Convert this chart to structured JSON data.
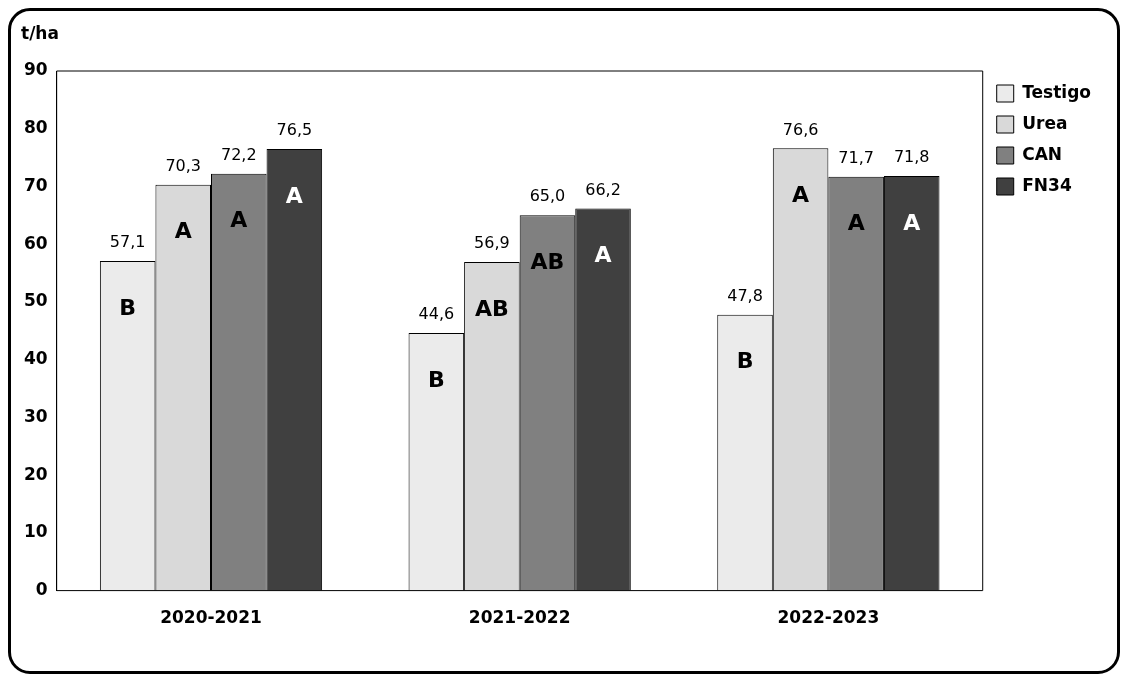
{
  "chart_data": {
    "type": "bar",
    "ylabel": "t/ha",
    "categories": [
      "2020-2021",
      "2021-2022",
      "2022-2023"
    ],
    "series": [
      {
        "name": "Testigo",
        "color": "#ebebeb",
        "values": [
          57.1,
          44.6,
          47.8
        ],
        "value_labels": [
          "57,1",
          "44,6",
          "47,8"
        ]
      },
      {
        "name": "Urea",
        "color": "#d9d9d9",
        "values": [
          70.3,
          56.9,
          76.6
        ],
        "value_labels": [
          "70,3",
          "56,9",
          "76,6"
        ]
      },
      {
        "name": "CAN",
        "color": "#808080",
        "values": [
          72.2,
          65.0,
          71.7
        ],
        "value_labels": [
          "72,2",
          "65,0",
          "71,7"
        ]
      },
      {
        "name": "FN34",
        "color": "#404040",
        "values": [
          76.5,
          66.2,
          71.8
        ],
        "value_labels": [
          "76,5",
          "66,2",
          "71,8"
        ]
      }
    ],
    "annotations": [
      "B",
      "B",
      "B",
      "A",
      "AB",
      "A",
      "A",
      "AB",
      "A",
      "A",
      "A",
      "A"
    ],
    "ylim": [
      0,
      90
    ],
    "yticks": [
      0,
      10,
      20,
      30,
      40,
      50,
      60,
      70,
      80,
      90
    ],
    "grid": false,
    "legend": "right"
  }
}
